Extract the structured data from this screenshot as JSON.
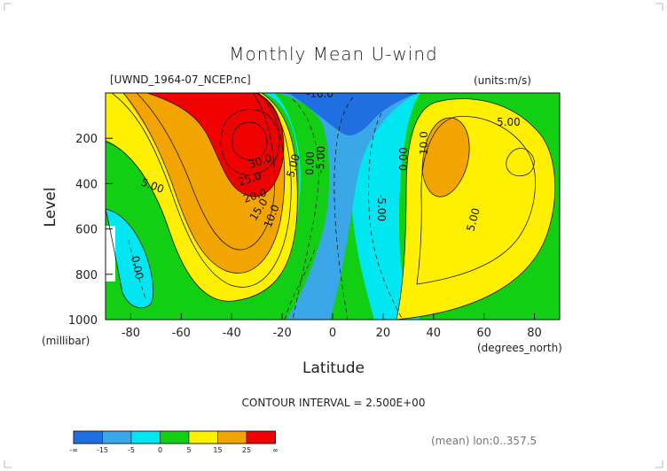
{
  "chart_data": {
    "type": "heatmap",
    "title": "Monthly Mean U-wind",
    "dataset": "[UWND_1964-07_NCEP.nc]",
    "units": "(units:m/s)",
    "xlabel": "Latitude",
    "x_unit": "(degrees_north)",
    "ylabel": "Level",
    "y_unit": "(millibar)",
    "xlim": [
      -90,
      90
    ],
    "ylim": [
      1000,
      0
    ],
    "x_ticks": [
      -80,
      -60,
      -40,
      -20,
      0,
      20,
      40,
      60,
      80
    ],
    "y_ticks": [
      200,
      400,
      600,
      800,
      1000
    ],
    "contour_interval_text": "CONTOUR INTERVAL = 2.500E+00",
    "region_text": "(mean) lon:0..357.5",
    "colorbar": {
      "labels": [
        "-∞",
        "-15",
        "-5",
        "0",
        "5",
        "15",
        "25",
        "∞"
      ],
      "colors": [
        "#1f6fe0",
        "#39a7e8",
        "#00e7f2",
        "#13cf13",
        "#fff000",
        "#f2a500",
        "#f00000"
      ]
    },
    "contour_labels": [
      "-10.0",
      "5.00",
      "0.00",
      "25.0",
      "30.0",
      "20.0",
      "15.0",
      "10.0",
      "5.00",
      "0.00",
      "-5.00",
      "-5.00",
      "0.00",
      "10.0",
      "5.00",
      "5.00"
    ],
    "series": [
      {
        "values": [
          0.0,
          2.5,
          5.0,
          10.0,
          15.0,
          20.0,
          25.0,
          30.0
        ]
      },
      {
        "values": [
          0.0,
          5.0,
          10.0,
          15.0,
          20.0,
          25.0
        ]
      },
      {
        "values": [
          -10.0,
          -5.0,
          0.0,
          5.0,
          10.0,
          12.5
        ]
      }
    ]
  }
}
